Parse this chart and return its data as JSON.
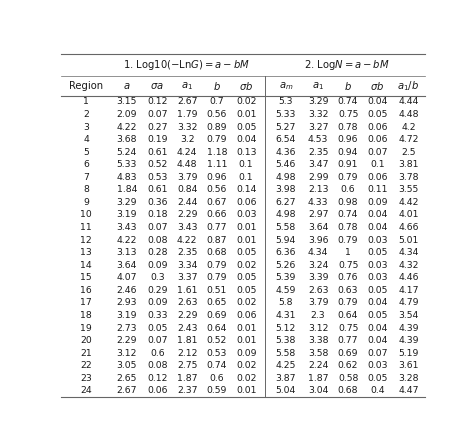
{
  "rows": [
    [
      1,
      3.15,
      0.12,
      2.67,
      0.7,
      0.02,
      5.3,
      3.29,
      0.74,
      0.04,
      4.44
    ],
    [
      2,
      2.09,
      0.07,
      1.79,
      0.56,
      0.01,
      5.33,
      3.32,
      0.75,
      0.05,
      4.48
    ],
    [
      3,
      4.22,
      0.27,
      3.32,
      0.89,
      0.05,
      5.27,
      3.27,
      0.78,
      0.06,
      4.2
    ],
    [
      4,
      3.68,
      0.19,
      3.2,
      0.79,
      0.04,
      6.54,
      4.53,
      0.96,
      0.06,
      4.72
    ],
    [
      5,
      5.24,
      0.61,
      4.24,
      1.18,
      0.13,
      4.36,
      2.35,
      0.94,
      0.07,
      2.5
    ],
    [
      6,
      5.33,
      0.52,
      4.48,
      1.11,
      0.1,
      5.46,
      3.47,
      0.91,
      0.1,
      3.81
    ],
    [
      7,
      4.83,
      0.53,
      3.79,
      0.96,
      0.1,
      4.98,
      2.99,
      0.79,
      0.06,
      3.78
    ],
    [
      8,
      1.84,
      0.61,
      0.84,
      0.56,
      0.14,
      3.98,
      2.13,
      0.6,
      0.11,
      3.55
    ],
    [
      9,
      3.29,
      0.36,
      2.44,
      0.67,
      0.06,
      6.27,
      4.33,
      0.98,
      0.09,
      4.42
    ],
    [
      10,
      3.19,
      0.18,
      2.29,
      0.66,
      0.03,
      4.98,
      2.97,
      0.74,
      0.04,
      4.01
    ],
    [
      11,
      3.43,
      0.07,
      3.43,
      0.77,
      0.01,
      5.58,
      3.64,
      0.78,
      0.04,
      4.66
    ],
    [
      12,
      4.22,
      0.08,
      4.22,
      0.87,
      0.01,
      5.94,
      3.96,
      0.79,
      0.03,
      5.01
    ],
    [
      13,
      3.13,
      0.28,
      2.35,
      0.68,
      0.05,
      6.36,
      4.34,
      1.0,
      0.05,
      4.34
    ],
    [
      14,
      3.64,
      0.09,
      3.34,
      0.79,
      0.02,
      5.26,
      3.24,
      0.75,
      0.03,
      4.32
    ],
    [
      15,
      4.07,
      0.3,
      3.37,
      0.79,
      0.05,
      5.39,
      3.39,
      0.76,
      0.03,
      4.46
    ],
    [
      16,
      2.46,
      0.29,
      1.61,
      0.51,
      0.05,
      4.59,
      2.63,
      0.63,
      0.05,
      4.17
    ],
    [
      17,
      2.93,
      0.09,
      2.63,
      0.65,
      0.02,
      5.8,
      3.79,
      0.79,
      0.04,
      4.79
    ],
    [
      18,
      3.19,
      0.33,
      2.29,
      0.69,
      0.06,
      4.31,
      2.3,
      0.64,
      0.05,
      3.54
    ],
    [
      19,
      2.73,
      0.05,
      2.43,
      0.64,
      0.01,
      5.12,
      3.12,
      0.75,
      0.04,
      4.39
    ],
    [
      20,
      2.29,
      0.07,
      1.81,
      0.52,
      0.01,
      5.38,
      3.38,
      0.77,
      0.04,
      4.39
    ],
    [
      21,
      3.12,
      0.6,
      2.12,
      0.53,
      0.09,
      5.58,
      3.58,
      0.69,
      0.07,
      5.19
    ],
    [
      22,
      3.05,
      0.08,
      2.75,
      0.74,
      0.02,
      4.25,
      2.24,
      0.62,
      0.03,
      3.61
    ],
    [
      23,
      2.65,
      0.12,
      1.87,
      0.6,
      0.02,
      3.87,
      1.87,
      0.58,
      0.05,
      3.28
    ],
    [
      24,
      2.67,
      0.06,
      2.37,
      0.59,
      0.01,
      5.04,
      3.04,
      0.68,
      0.4,
      4.47
    ]
  ],
  "text_color": "#1a1a1a",
  "line_color": "#666666",
  "fontsize_title": 7.2,
  "fontsize_header": 7.2,
  "fontsize_data": 6.7,
  "group1_title": "1. Log10(−Ln$G$)$=a-b$$M$",
  "group2_title": "2. Log$N$$=a-b$$M$"
}
